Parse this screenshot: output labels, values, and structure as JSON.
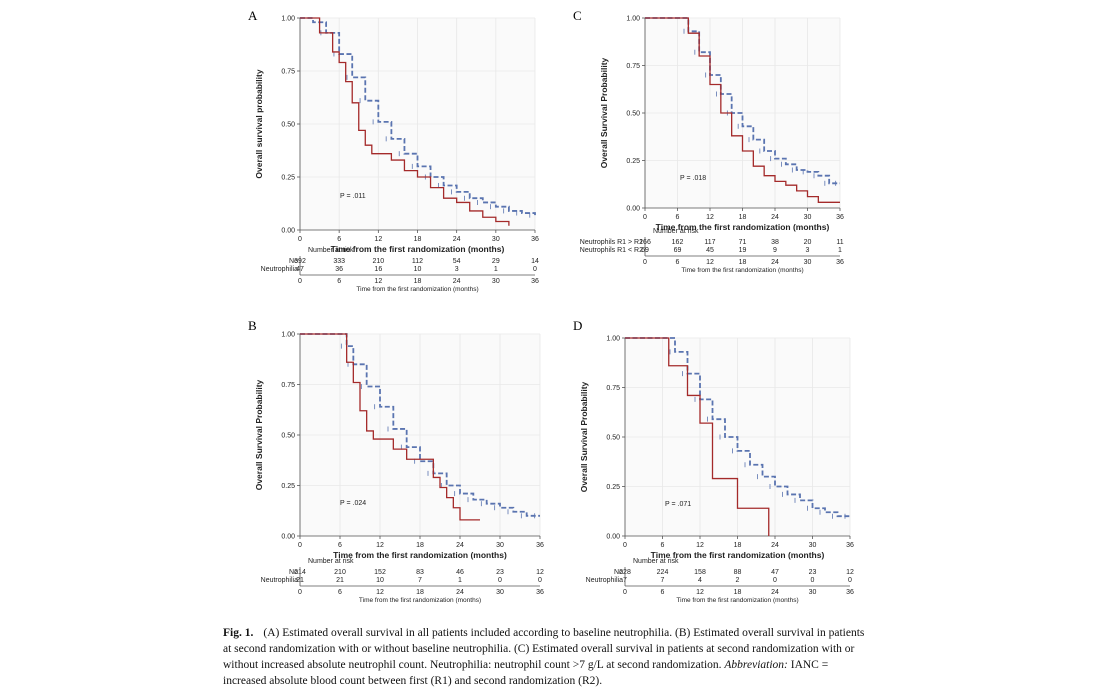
{
  "colors": {
    "no": "#5a74b0",
    "yes": "#a42a2a",
    "axis": "#555555",
    "grid": "#e8e8e8"
  },
  "caption": {
    "label": "Fig. 1.",
    "part1": "(A) Estimated overall survival in all patients included according to baseline neutrophilia. (B) Estimated overall survival in patients at second randomization with or without baseline neutrophilia. (C) Estimated overall survival in patients at second randomization with or without increased absolute neutrophil count. Neutrophilia: neutrophil count >7 g/L at second randomization.",
    "abbr_label": "Abbreviation:",
    "part2": "IANC = increased absolute blood count between first (R1) and second randomization (R2)."
  },
  "chart_data": [
    {
      "panel": "A",
      "type": "line",
      "ylabel": "Overall survival probability",
      "xlabel": "Time from the first randomization (months)",
      "risk_xlabel": "Time from the first randomization (months)",
      "x_ticks": [
        0,
        6,
        12,
        18,
        24,
        30,
        36
      ],
      "y_ticks": [
        "0.00",
        "0.25",
        "0.50",
        "0.75",
        "1.00"
      ],
      "xlim": [
        0,
        36
      ],
      "ylim": [
        0,
        1
      ],
      "pvalue": "P = .011",
      "risk_title": "Number at risk",
      "series": [
        {
          "name": "No",
          "style": "dashed",
          "x": [
            0,
            2,
            4,
            6,
            8,
            10,
            12,
            14,
            16,
            18,
            20,
            22,
            24,
            26,
            28,
            30,
            32,
            34,
            36
          ],
          "y": [
            1.0,
            0.98,
            0.93,
            0.83,
            0.72,
            0.61,
            0.51,
            0.43,
            0.36,
            0.3,
            0.25,
            0.21,
            0.18,
            0.15,
            0.13,
            0.11,
            0.09,
            0.08,
            0.07
          ]
        },
        {
          "name": "Neutrophilia",
          "style": "solid",
          "x": [
            0,
            3,
            5,
            6,
            7,
            8,
            9,
            10,
            11,
            12,
            14,
            16,
            18,
            20,
            22,
            24,
            26,
            28,
            30,
            32
          ],
          "y": [
            1.0,
            0.93,
            0.84,
            0.79,
            0.7,
            0.6,
            0.47,
            0.4,
            0.36,
            0.36,
            0.33,
            0.28,
            0.25,
            0.2,
            0.15,
            0.13,
            0.09,
            0.06,
            0.04,
            0.02
          ]
        }
      ],
      "risk_table": [
        {
          "label": "No",
          "values": [
            "392",
            "333",
            "210",
            "112",
            "54",
            "29",
            "14"
          ]
        },
        {
          "label": "Neutrophilia",
          "values": [
            "47",
            "36",
            "16",
            "10",
            "3",
            "1",
            "0"
          ]
        }
      ]
    },
    {
      "panel": "B",
      "type": "line",
      "ylabel": "Overall Survival Probability",
      "xlabel": "Time from the first randomization (months)",
      "risk_xlabel": "Time from the first randomization (months)",
      "x_ticks": [
        0,
        6,
        12,
        18,
        24,
        30,
        36
      ],
      "y_ticks": [
        "0.00",
        "0.25",
        "0.50",
        "0.75",
        "1.00"
      ],
      "xlim": [
        0,
        36
      ],
      "ylim": [
        0,
        1
      ],
      "pvalue": "P = .024",
      "risk_title": "Number at risk",
      "series": [
        {
          "name": "No",
          "style": "dashed",
          "x": [
            0,
            6,
            7,
            8,
            10,
            12,
            14,
            16,
            18,
            20,
            22,
            24,
            26,
            28,
            30,
            32,
            34,
            36
          ],
          "y": [
            1.0,
            1.0,
            0.94,
            0.85,
            0.74,
            0.64,
            0.53,
            0.44,
            0.37,
            0.31,
            0.25,
            0.21,
            0.18,
            0.16,
            0.14,
            0.12,
            0.1,
            0.1
          ]
        },
        {
          "name": "Neutrophilia",
          "style": "solid",
          "x": [
            0,
            6,
            7,
            8,
            9,
            10,
            11,
            12,
            14,
            16,
            18,
            20,
            21,
            22,
            23,
            24,
            26,
            27
          ],
          "y": [
            1.0,
            1.0,
            0.86,
            0.76,
            0.62,
            0.52,
            0.48,
            0.48,
            0.43,
            0.38,
            0.38,
            0.29,
            0.24,
            0.19,
            0.14,
            0.08,
            0.08,
            0.08
          ]
        }
      ],
      "risk_table": [
        {
          "label": "No",
          "values": [
            "214",
            "210",
            "152",
            "83",
            "46",
            "23",
            "12"
          ]
        },
        {
          "label": "Neutrophilia",
          "values": [
            "21",
            "21",
            "10",
            "7",
            "1",
            "0",
            "0"
          ]
        }
      ]
    },
    {
      "panel": "C",
      "type": "line",
      "ylabel": "Overall Survival Probability",
      "xlabel": "Time from the first randomization (months)",
      "risk_xlabel": "Time from the first randomization (months)",
      "x_ticks": [
        0,
        6,
        12,
        18,
        24,
        30,
        36
      ],
      "y_ticks": [
        "0.00",
        "0.25",
        "0.50",
        "0.75",
        "1.00"
      ],
      "xlim": [
        0,
        36
      ],
      "ylim": [
        0,
        1
      ],
      "pvalue": "P = .018",
      "risk_title": "Number at risk",
      "series": [
        {
          "name": "Neutrophils R1 > R2",
          "style": "dashed",
          "x": [
            0,
            6,
            8,
            10,
            12,
            14,
            16,
            18,
            20,
            22,
            24,
            26,
            28,
            30,
            32,
            34,
            36
          ],
          "y": [
            1.0,
            1.0,
            0.93,
            0.82,
            0.7,
            0.6,
            0.5,
            0.43,
            0.36,
            0.3,
            0.26,
            0.23,
            0.2,
            0.19,
            0.17,
            0.13,
            0.13
          ]
        },
        {
          "name": "Neutrophils R1 < R2",
          "style": "solid",
          "x": [
            0,
            6,
            8,
            10,
            12,
            14,
            16,
            18,
            20,
            22,
            24,
            26,
            28,
            30,
            32,
            36
          ],
          "y": [
            1.0,
            1.0,
            0.92,
            0.8,
            0.65,
            0.5,
            0.38,
            0.3,
            0.22,
            0.17,
            0.14,
            0.12,
            0.09,
            0.06,
            0.03,
            0.03
          ]
        }
      ],
      "risk_table": [
        {
          "label": "Neutrophils R1 > R2",
          "values": [
            "166",
            "162",
            "117",
            "71",
            "38",
            "20",
            "11"
          ]
        },
        {
          "label": "Neutrophils R1 < R2",
          "values": [
            "69",
            "69",
            "45",
            "19",
            "9",
            "3",
            "1"
          ]
        }
      ]
    },
    {
      "panel": "D",
      "type": "line",
      "ylabel": "Overall Survival Probability",
      "xlabel": "Time from the first randomization (months)",
      "risk_xlabel": "Time from the first randomization (months)",
      "x_ticks": [
        0,
        6,
        12,
        18,
        24,
        30,
        36
      ],
      "y_ticks": [
        "0.00",
        "0.25",
        "0.50",
        "0.75",
        "1.00"
      ],
      "xlim": [
        0,
        36
      ],
      "ylim": [
        0,
        1
      ],
      "pvalue": "P = .071",
      "risk_title": "Number at risk",
      "series": [
        {
          "name": "No",
          "style": "dashed",
          "x": [
            0,
            6,
            8,
            10,
            12,
            14,
            16,
            18,
            20,
            22,
            24,
            26,
            28,
            30,
            32,
            34,
            36
          ],
          "y": [
            1.0,
            1.0,
            0.93,
            0.82,
            0.69,
            0.59,
            0.5,
            0.43,
            0.36,
            0.3,
            0.25,
            0.21,
            0.18,
            0.14,
            0.12,
            0.1,
            0.1
          ]
        },
        {
          "name": "Neutrophilia",
          "style": "solid",
          "x": [
            0,
            6,
            7,
            8,
            10,
            11,
            12,
            13,
            14,
            17,
            18,
            20,
            23,
            23
          ],
          "y": [
            1.0,
            1.0,
            0.86,
            0.86,
            0.71,
            0.71,
            0.57,
            0.57,
            0.29,
            0.29,
            0.14,
            0.14,
            0.14,
            0.0
          ]
        }
      ],
      "risk_table": [
        {
          "label": "No",
          "values": [
            "228",
            "224",
            "158",
            "88",
            "47",
            "23",
            "12"
          ]
        },
        {
          "label": "Neutrophilia",
          "values": [
            "7",
            "7",
            "4",
            "2",
            "0",
            "0",
            "0"
          ]
        }
      ]
    }
  ]
}
